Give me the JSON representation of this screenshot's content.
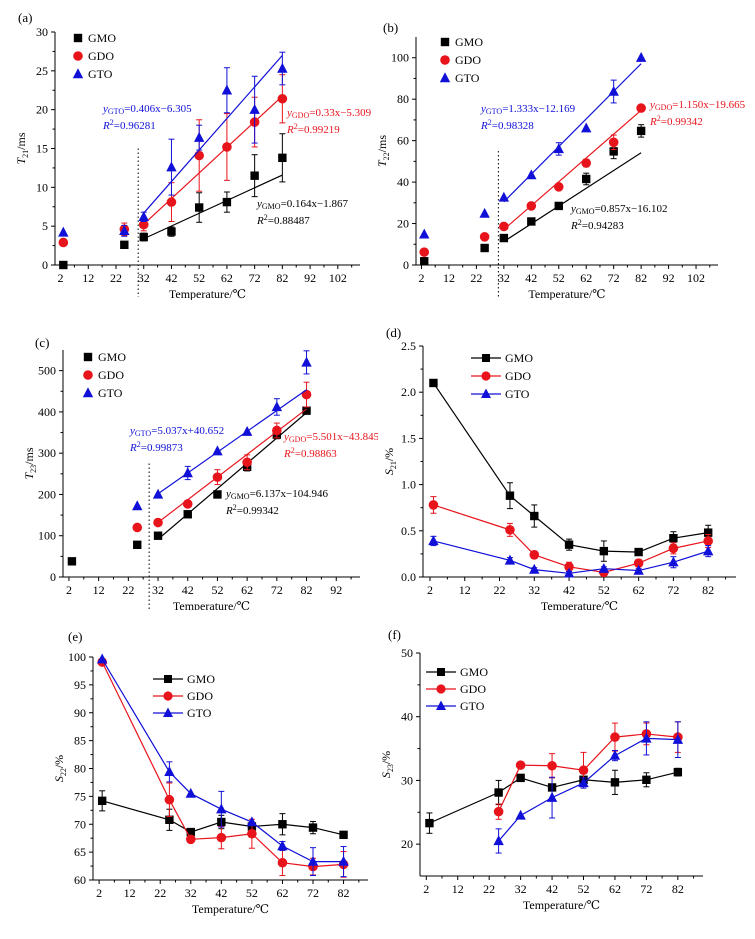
{
  "chart_data": [
    {
      "panel": "(a)",
      "type": "scatter",
      "fit": true,
      "xlabel": "Temperature/℃",
      "ylabel_main": "T",
      "ylabel_sub": "21",
      "ylabel_unit": "/ms",
      "xlim": [
        0,
        110
      ],
      "ylim": [
        0,
        30
      ],
      "xticks": [
        2,
        12,
        22,
        32,
        42,
        52,
        62,
        72,
        82,
        92,
        102
      ],
      "yticks": [
        0,
        5,
        10,
        15,
        20,
        25,
        30
      ],
      "vline": 30,
      "legend_style": "markers",
      "series": [
        {
          "name": "GMO",
          "color": "#000000",
          "marker": "square",
          "x": [
            3,
            25,
            32,
            42,
            52,
            62,
            72,
            82
          ],
          "y": [
            0,
            2.6,
            3.6,
            4.3,
            7.4,
            8.1,
            11.5,
            13.8
          ],
          "err": [
            0,
            0,
            0.5,
            0.6,
            1.9,
            1.3,
            2.7,
            3.1
          ],
          "fit": {
            "x": [
              32,
              82
            ],
            "slope": 0.164,
            "intercept": -1.867
          },
          "equation": {
            "label": "GMO",
            "text": "=0.164x−1.867",
            "r2": "=0.88487"
          }
        },
        {
          "name": "GDO",
          "color": "#e8141c",
          "marker": "circle",
          "x": [
            3,
            25,
            32,
            42,
            52,
            62,
            72,
            82
          ],
          "y": [
            2.9,
            4.6,
            5.2,
            8.1,
            14.1,
            15.2,
            18.4,
            21.4
          ],
          "err": [
            0,
            0.8,
            0.8,
            2.5,
            4.6,
            4.3,
            3.2,
            3.1
          ],
          "fit": {
            "x": [
              32,
              82
            ],
            "slope": 0.33,
            "intercept": -5.309
          },
          "equation": {
            "label": "GDO",
            "text": "=0.33x−5.309",
            "r2": "=0.99219"
          }
        },
        {
          "name": "GTO",
          "color": "#1010d8",
          "marker": "triangle",
          "x": [
            3,
            25,
            32,
            42,
            52,
            62,
            72,
            82
          ],
          "y": [
            4.2,
            4.4,
            6.2,
            12.6,
            16.4,
            22.5,
            20,
            25.3
          ],
          "err": [
            0,
            0.7,
            0.6,
            3.6,
            1.6,
            2.9,
            4.3,
            2.1
          ],
          "fit": {
            "x": [
              32,
              82
            ],
            "slope": 0.406,
            "intercept": -6.305
          },
          "equation": {
            "label": "GTO",
            "text": "=0.406x−6.305",
            "r2": "=0.96281"
          }
        }
      ]
    },
    {
      "panel": "(b)",
      "type": "scatter",
      "fit": true,
      "xlabel": "Temperature/℃",
      "ylabel_main": "T",
      "ylabel_sub": "22",
      "ylabel_unit": "/ms",
      "xlim": [
        0,
        110
      ],
      "ylim": [
        0,
        110
      ],
      "xticks": [
        2,
        12,
        22,
        32,
        42,
        52,
        62,
        72,
        82,
        92,
        102
      ],
      "yticks": [
        0,
        20,
        40,
        60,
        80,
        100
      ],
      "vline": 30,
      "legend_style": "markers",
      "series": [
        {
          "name": "GMO",
          "color": "#000000",
          "marker": "square",
          "x": [
            3,
            25,
            32,
            42,
            52,
            62,
            72,
            82
          ],
          "y": [
            1.8,
            8.2,
            13,
            21,
            28.5,
            41.5,
            54.8,
            64.7
          ],
          "err": [
            0,
            0,
            0,
            0,
            0,
            2.8,
            3.5,
            3
          ],
          "fit": {
            "x": [
              32,
              82
            ],
            "slope": 0.857,
            "intercept": -16.102
          },
          "equation": {
            "label": "GMO",
            "text": "=0.857x−16.102",
            "r2": "=0.94283"
          }
        },
        {
          "name": "GDO",
          "color": "#e8141c",
          "marker": "circle",
          "x": [
            3,
            25,
            32,
            42,
            52,
            62,
            72,
            82
          ],
          "y": [
            6.2,
            13.6,
            18.6,
            28.5,
            37.7,
            49.2,
            59.2,
            75.7
          ],
          "err": [
            0,
            0,
            0,
            0,
            0,
            1.8,
            3.5,
            0
          ],
          "fit": {
            "x": [
              32,
              82
            ],
            "slope": 1.15,
            "intercept": -19.665
          },
          "equation": {
            "label": "GDO",
            "text": "=1.150x−19.665",
            "r2": "=0.99342"
          }
        },
        {
          "name": "GTO",
          "color": "#1010d8",
          "marker": "triangle",
          "x": [
            3,
            25,
            32,
            42,
            52,
            62,
            72,
            82
          ],
          "y": [
            14.8,
            24.8,
            32.6,
            43.4,
            56,
            66,
            83.7,
            100
          ],
          "err": [
            0,
            0,
            0,
            0,
            3,
            0,
            5.5,
            0
          ],
          "fit": {
            "x": [
              32,
              82
            ],
            "slope": 1.333,
            "intercept": -12.169
          },
          "equation": {
            "label": "GTO",
            "text": "=1.333x−12.169",
            "r2": "=0.98328"
          }
        }
      ]
    },
    {
      "panel": "(c)",
      "type": "scatter",
      "fit": true,
      "xlabel": "Temperature/℃",
      "ylabel_main": "T",
      "ylabel_sub": "23",
      "ylabel_unit": "/ms",
      "xlim": [
        0,
        100
      ],
      "ylim": [
        0,
        550
      ],
      "xticks": [
        2,
        12,
        22,
        32,
        42,
        52,
        62,
        72,
        82,
        92
      ],
      "yticks": [
        0,
        100,
        200,
        300,
        400,
        500
      ],
      "vline": 29,
      "legend_style": "markers",
      "series": [
        {
          "name": "GMO",
          "color": "#000000",
          "marker": "square",
          "x": [
            3,
            25,
            32,
            42,
            52,
            62,
            72,
            82
          ],
          "y": [
            38,
            78,
            100,
            152,
            200,
            267,
            345,
            403
          ],
          "err": [
            0,
            0,
            0,
            0,
            0,
            10,
            10,
            0
          ],
          "fit": {
            "x": [
              32,
              82
            ],
            "slope": 6.137,
            "intercept": -104.946
          },
          "equation": {
            "label": "GMO",
            "text": "=6.137x−104.946",
            "r2": "=0.99342"
          }
        },
        {
          "name": "GDO",
          "color": "#e8141c",
          "marker": "circle",
          "x": [
            25,
            32,
            42,
            52,
            62,
            72,
            82
          ],
          "y": [
            120,
            132,
            177,
            242,
            278,
            355,
            442
          ],
          "err": [
            0,
            0,
            0,
            18,
            18,
            18,
            30
          ],
          "fit": {
            "x": [
              32,
              82
            ],
            "slope": 5.501,
            "intercept": -43.845
          },
          "equation": {
            "label": "GDO",
            "text": "=5.501x−43.845",
            "r2": "=0.98863"
          }
        },
        {
          "name": "GTO",
          "color": "#1010d8",
          "marker": "triangle",
          "x": [
            25,
            32,
            42,
            52,
            62,
            72,
            82
          ],
          "y": [
            172,
            200,
            252,
            305,
            352,
            412,
            520
          ],
          "err": [
            0,
            0,
            16,
            0,
            0,
            20,
            28
          ],
          "fit": {
            "x": [
              32,
              82
            ],
            "slope": 5.037,
            "intercept": 40.652
          },
          "equation": {
            "label": "GTO",
            "text": "=5.037x+40.652",
            "r2": "=0.99873"
          }
        }
      ]
    },
    {
      "panel": "(d)",
      "type": "line",
      "fit": false,
      "xlabel": "Temperature/℃",
      "ylabel_main": "S",
      "ylabel_sub": "21",
      "ylabel_unit": "/%",
      "xlim": [
        0,
        90
      ],
      "ylim": [
        0,
        2.5
      ],
      "xticks": [
        2,
        12,
        22,
        32,
        42,
        52,
        62,
        72,
        82
      ],
      "yticks": [
        0.0,
        0.5,
        1.0,
        1.5,
        2.0,
        2.5
      ],
      "ytick_labels": [
        "0.0",
        "0.5",
        "1.0",
        "1.5",
        "2.0",
        "2.5"
      ],
      "legend_style": "lines",
      "series": [
        {
          "name": "GMO",
          "color": "#000000",
          "marker": "square",
          "x": [
            3,
            25,
            32,
            42,
            52,
            62,
            72,
            82
          ],
          "y": [
            2.1,
            0.88,
            0.66,
            0.35,
            0.28,
            0.27,
            0.42,
            0.48
          ],
          "err": [
            0,
            0.14,
            0.12,
            0.06,
            0.11,
            0.03,
            0.07,
            0.08
          ]
        },
        {
          "name": "GDO",
          "color": "#e8141c",
          "marker": "circle",
          "x": [
            3,
            25,
            32,
            42,
            52,
            62,
            72,
            82
          ],
          "y": [
            0.78,
            0.51,
            0.24,
            0.11,
            0.05,
            0.15,
            0.31,
            0.39
          ],
          "err": [
            0.09,
            0.07,
            0.04,
            0.05,
            0.03,
            0.04,
            0.06,
            0.07
          ]
        },
        {
          "name": "GTO",
          "color": "#1010d8",
          "marker": "triangle",
          "x": [
            3,
            25,
            32,
            42,
            52,
            62,
            72,
            82
          ],
          "y": [
            0.39,
            0.18,
            0.08,
            0.04,
            0.09,
            0.07,
            0.16,
            0.28
          ],
          "err": [
            0.05,
            0.03,
            0.02,
            0.02,
            0.02,
            0.02,
            0.06,
            0.06
          ]
        }
      ]
    },
    {
      "panel": "(e)",
      "type": "line",
      "fit": false,
      "xlabel": "Temperature/℃",
      "ylabel_main": "S",
      "ylabel_sub": "22",
      "ylabel_unit": "/%",
      "xlim": [
        0,
        90
      ],
      "ylim": [
        60,
        100
      ],
      "xticks": [
        2,
        12,
        22,
        32,
        42,
        52,
        62,
        72,
        82
      ],
      "yticks": [
        60,
        65,
        70,
        75,
        80,
        85,
        90,
        95,
        100
      ],
      "legend_style": "lines",
      "series": [
        {
          "name": "GMO",
          "color": "#000000",
          "marker": "square",
          "x": [
            3,
            25,
            32,
            42,
            52,
            62,
            72,
            82
          ],
          "y": [
            74.2,
            70.8,
            68.6,
            70.4,
            69.6,
            70,
            69.4,
            68.1
          ],
          "err": [
            1.8,
            1.9,
            0.5,
            1.2,
            0.5,
            1.9,
            1.1,
            0.5
          ]
        },
        {
          "name": "GDO",
          "color": "#e8141c",
          "marker": "circle",
          "x": [
            3,
            25,
            32,
            42,
            52,
            62,
            72,
            82
          ],
          "y": [
            99.1,
            74.4,
            67.3,
            67.6,
            68.3,
            63.1,
            62.4,
            62.8
          ],
          "err": [
            0,
            3,
            0.5,
            2,
            2.6,
            2.3,
            1.5,
            2.3
          ]
        },
        {
          "name": "GTO",
          "color": "#1010d8",
          "marker": "triangle",
          "x": [
            3,
            25,
            32,
            42,
            52,
            62,
            72,
            82
          ],
          "y": [
            99.6,
            79.4,
            75.5,
            72.7,
            70.4,
            66.1,
            63.3,
            63.3
          ],
          "err": [
            0,
            1.8,
            0,
            3.2,
            0,
            0.8,
            2.5,
            2.7
          ]
        }
      ]
    },
    {
      "panel": "(f)",
      "type": "line",
      "fit": false,
      "xlabel": "Temperature/℃",
      "ylabel_main": "S",
      "ylabel_sub": "23",
      "ylabel_unit": "/%",
      "xlim": [
        0,
        90
      ],
      "ylim": [
        15,
        50
      ],
      "xticks": [
        2,
        12,
        22,
        32,
        42,
        52,
        62,
        72,
        82
      ],
      "yticks": [
        20,
        30,
        40,
        50
      ],
      "legend_style": "lines",
      "series": [
        {
          "name": "GMO",
          "color": "#000000",
          "marker": "square",
          "x": [
            3,
            25,
            32,
            42,
            52,
            62,
            72,
            82
          ],
          "y": [
            23.3,
            28.1,
            30.4,
            28.9,
            30.1,
            29.7,
            30.1,
            31.3
          ],
          "err": [
            1.6,
            1.9,
            0,
            0,
            0,
            1.9,
            1.1,
            0.6
          ]
        },
        {
          "name": "GDO",
          "color": "#e8141c",
          "marker": "circle",
          "x": [
            25,
            32,
            42,
            52,
            62,
            72,
            82
          ],
          "y": [
            25.1,
            32.4,
            32.3,
            31.6,
            36.8,
            37.3,
            36.8
          ],
          "err": [
            1.2,
            0,
            1.9,
            2.8,
            2.2,
            1.7,
            2.4
          ]
        },
        {
          "name": "GTO",
          "color": "#1010d8",
          "marker": "triangle",
          "x": [
            25,
            32,
            42,
            52,
            62,
            72,
            82
          ],
          "y": [
            20.5,
            24.5,
            27.3,
            29.6,
            33.9,
            36.6,
            36.4
          ],
          "err": [
            1.9,
            0,
            3.2,
            0.8,
            0.8,
            2.6,
            2.8
          ]
        }
      ]
    }
  ]
}
